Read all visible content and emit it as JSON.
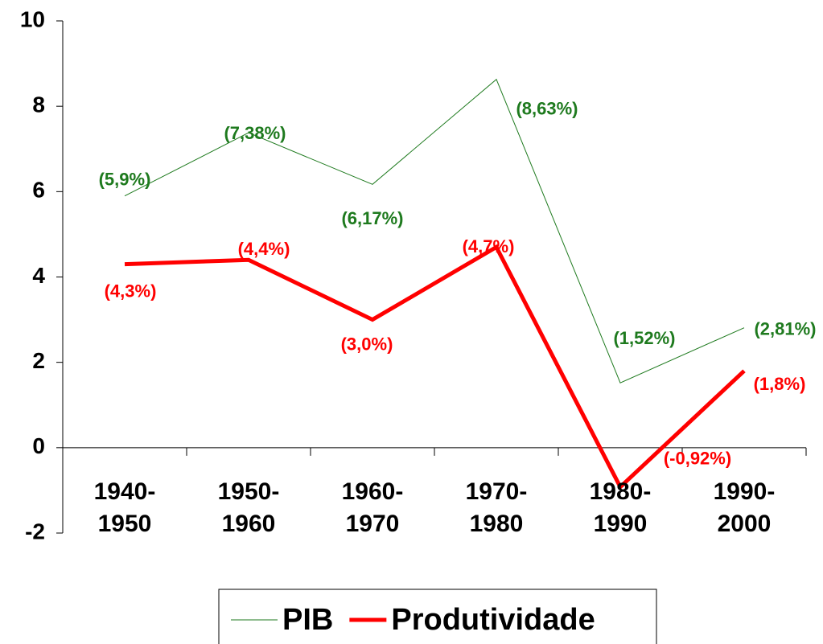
{
  "chart_data": {
    "type": "line",
    "categories": [
      "1940-1950",
      "1950-1960",
      "1960-1970",
      "1970-1980",
      "1980-1990",
      "1990-2000"
    ],
    "series": [
      {
        "name": "PIB",
        "color": "#1e7a1e",
        "values": [
          5.9,
          7.38,
          6.17,
          8.63,
          1.52,
          2.81
        ],
        "value_labels": [
          "(5,9%)",
          "(7,38%)",
          "(6,17%)",
          "(8,63%)",
          "(1,52%)",
          "(2,81%)"
        ]
      },
      {
        "name": "Produtividade",
        "color": "#ff0000",
        "values": [
          4.3,
          4.4,
          3.0,
          4.7,
          -0.92,
          1.8
        ],
        "value_labels": [
          "(4,3%)",
          "(4,4%)",
          "(3,0%)",
          "(4,7%)",
          "(-0,92%)",
          "(1,8%)"
        ]
      }
    ],
    "ylim": [
      -2,
      10
    ],
    "yticks": [
      -2,
      0,
      2,
      4,
      6,
      8,
      10
    ],
    "legend": "bottom"
  }
}
